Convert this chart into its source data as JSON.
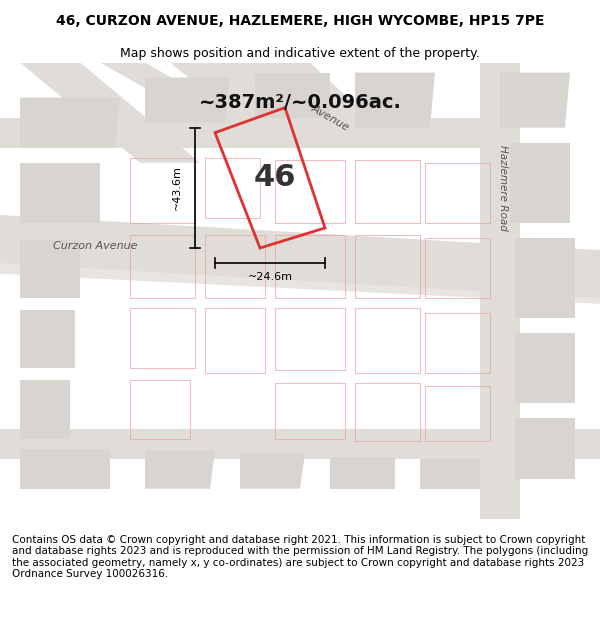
{
  "title_line1": "46, CURZON AVENUE, HAZLEMERE, HIGH WYCOMBE, HP15 7PE",
  "title_line2": "Map shows position and indicative extent of the property.",
  "area_text": "~387m²/~0.096ac.",
  "property_number": "46",
  "dim_width": "~24.6m",
  "dim_height": "~43.6m",
  "footer_text": "Contains OS data © Crown copyright and database right 2021. This information is subject to Crown copyright and database rights 2023 and is reproduced with the permission of HM Land Registry. The polygons (including the associated geometry, namely x, y co-ordinates) are subject to Crown copyright and database rights 2023 Ordnance Survey 100026316.",
  "bg_color": "#f0eeea",
  "map_bg": "#f0eeea",
  "road_color": "#ffffff",
  "block_color": "#d8d5d0",
  "property_fill": "#f0eeea",
  "property_edge": "#e03030",
  "street_label_curzon": "Curzon Avenue",
  "street_label_avenue": "Avenue",
  "street_label_hazlemere": "Hazlemere Road",
  "title_fontsize": 10,
  "subtitle_fontsize": 9,
  "footer_fontsize": 7.5
}
